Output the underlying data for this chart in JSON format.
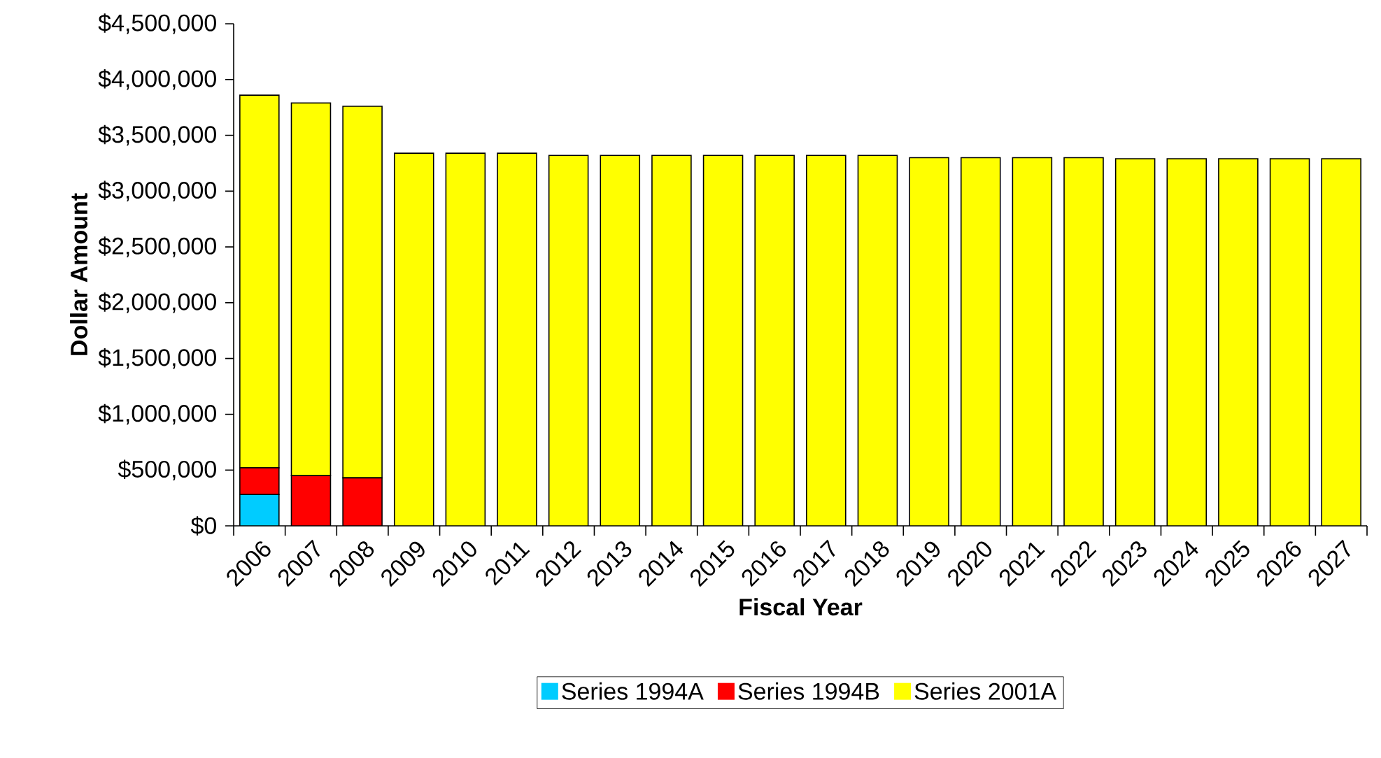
{
  "chart_data": {
    "type": "bar",
    "stacked": true,
    "xlabel": "Fiscal Year",
    "ylabel": "Dollar Amount",
    "categories": [
      "2006",
      "2007",
      "2008",
      "2009",
      "2010",
      "2011",
      "2012",
      "2013",
      "2014",
      "2015",
      "2016",
      "2017",
      "2018",
      "2019",
      "2020",
      "2021",
      "2022",
      "2023",
      "2024",
      "2025",
      "2026",
      "2027"
    ],
    "series": [
      {
        "name": "Series 1994A",
        "color": "#00ccff",
        "values": [
          280000,
          0,
          0,
          0,
          0,
          0,
          0,
          0,
          0,
          0,
          0,
          0,
          0,
          0,
          0,
          0,
          0,
          0,
          0,
          0,
          0,
          0
        ]
      },
      {
        "name": "Series 1994B",
        "color": "#ff0000",
        "values": [
          240000,
          450000,
          430000,
          0,
          0,
          0,
          0,
          0,
          0,
          0,
          0,
          0,
          0,
          0,
          0,
          0,
          0,
          0,
          0,
          0,
          0,
          0
        ]
      },
      {
        "name": "Series 2001A",
        "color": "#ffff00",
        "values": [
          3340000,
          3340000,
          3330000,
          3340000,
          3340000,
          3340000,
          3320000,
          3320000,
          3320000,
          3320000,
          3320000,
          3320000,
          3320000,
          3300000,
          3300000,
          3300000,
          3300000,
          3290000,
          3290000,
          3290000,
          3290000,
          3290000
        ]
      }
    ],
    "ylim": [
      0,
      4500000
    ],
    "yticks": [
      {
        "value": 0,
        "label": "$0"
      },
      {
        "value": 500000,
        "label": "$500,000"
      },
      {
        "value": 1000000,
        "label": "$1,000,000"
      },
      {
        "value": 1500000,
        "label": "$1,500,000"
      },
      {
        "value": 2000000,
        "label": "$2,000,000"
      },
      {
        "value": 2500000,
        "label": "$2,500,000"
      },
      {
        "value": 3000000,
        "label": "$3,000,000"
      },
      {
        "value": 3500000,
        "label": "$3,500,000"
      },
      {
        "value": 4000000,
        "label": "$4,000,000"
      },
      {
        "value": 4500000,
        "label": "$4,500,000"
      }
    ],
    "grid": false,
    "legend": "bottom"
  }
}
